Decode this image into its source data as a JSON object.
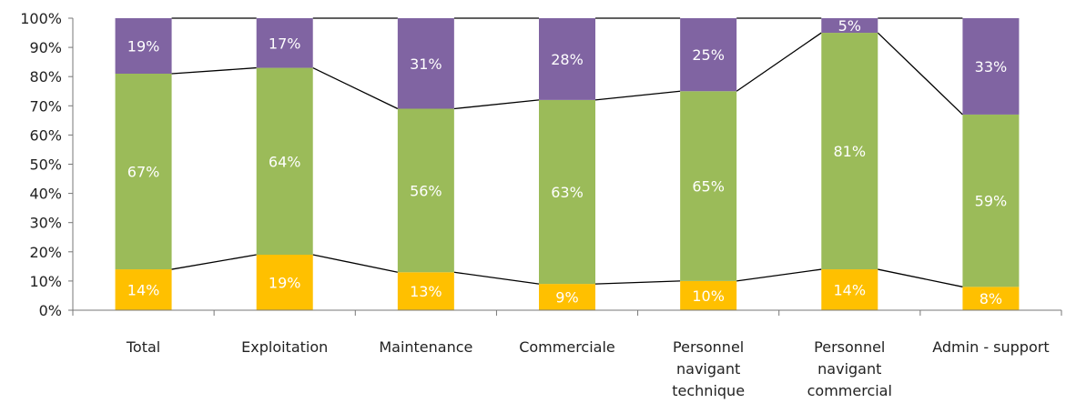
{
  "chart_data": {
    "type": "bar",
    "stacked": "percent",
    "categories": [
      [
        "Total"
      ],
      [
        "Exploitation"
      ],
      [
        "Maintenance"
      ],
      [
        "Commerciale"
      ],
      [
        "Personnel",
        "navigant",
        "technique"
      ],
      [
        "Personnel",
        "navigant",
        "commercial"
      ],
      [
        "Admin - support"
      ]
    ],
    "series": [
      {
        "color": "#ffc000",
        "values": [
          14,
          19,
          13,
          9,
          10,
          14,
          8
        ],
        "labels": [
          "14%",
          "19%",
          "13%",
          "9%",
          "10%",
          "14%",
          "8%"
        ]
      },
      {
        "color": "#9bbb59",
        "values": [
          67,
          64,
          56,
          63,
          65,
          81,
          59
        ],
        "labels": [
          "67%",
          "64%",
          "56%",
          "63%",
          "65%",
          "81%",
          "59%"
        ]
      },
      {
        "color": "#8064a2",
        "values": [
          19,
          17,
          31,
          28,
          25,
          5,
          33
        ],
        "labels": [
          "19%",
          "17%",
          "31%",
          "28%",
          "25%",
          "5%",
          "33%"
        ]
      }
    ],
    "ylim": [
      0,
      100
    ],
    "yticks": [
      "0%",
      "10%",
      "20%",
      "30%",
      "40%",
      "50%",
      "60%",
      "70%",
      "80%",
      "90%",
      "100%"
    ],
    "series_lines": true,
    "legend": "none",
    "grid": false,
    "title": "",
    "xlabel": "",
    "ylabel": ""
  }
}
